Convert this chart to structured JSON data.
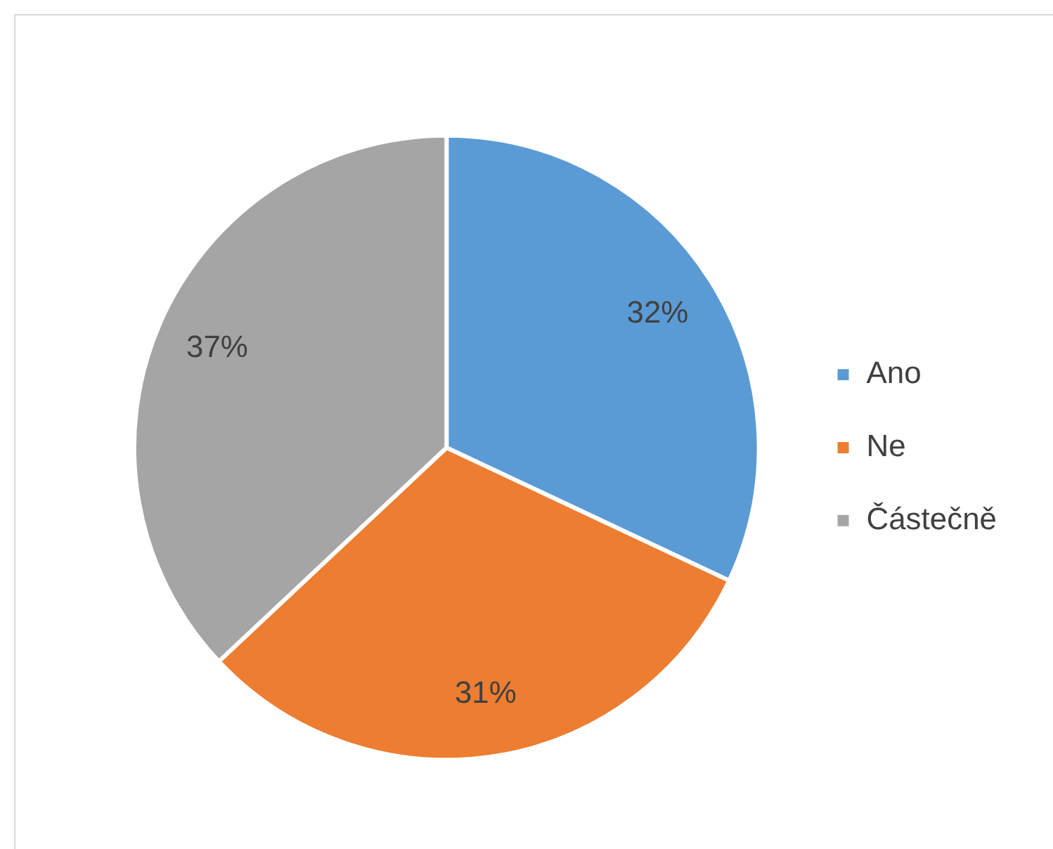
{
  "chart_data": {
    "type": "pie",
    "categories": [
      "Ano",
      "Ne",
      "Částečně"
    ],
    "values": [
      32,
      31,
      37
    ],
    "colors": [
      "#5b9bd5",
      "#ed7d31",
      "#a5a5a5"
    ],
    "value_labels": [
      "32%",
      "31%",
      "37%"
    ],
    "legend": "right"
  }
}
